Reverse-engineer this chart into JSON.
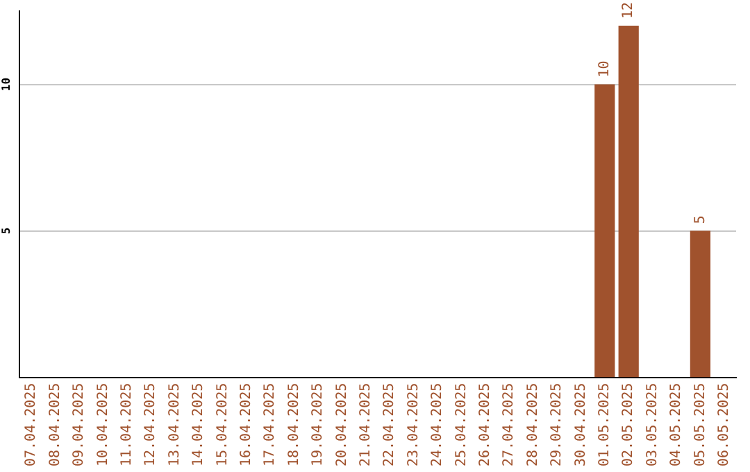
{
  "chart_data": {
    "type": "bar",
    "categories": [
      "07.04.2025",
      "08.04.2025",
      "09.04.2025",
      "10.04.2025",
      "11.04.2025",
      "12.04.2025",
      "13.04.2025",
      "14.04.2025",
      "15.04.2025",
      "16.04.2025",
      "17.04.2025",
      "18.04.2025",
      "19.04.2025",
      "20.04.2025",
      "21.04.2025",
      "22.04.2025",
      "23.04.2025",
      "24.04.2025",
      "25.04.2025",
      "26.04.2025",
      "27.04.2025",
      "28.04.2025",
      "29.04.2025",
      "30.04.2025",
      "01.05.2025",
      "02.05.2025",
      "03.05.2025",
      "04.05.2025",
      "05.05.2025",
      "06.05.2025"
    ],
    "values": [
      null,
      null,
      null,
      null,
      null,
      null,
      null,
      null,
      null,
      null,
      null,
      null,
      null,
      null,
      null,
      null,
      null,
      null,
      null,
      null,
      null,
      null,
      null,
      null,
      10,
      12,
      null,
      null,
      5,
      null
    ],
    "color": "#a0522d",
    "ylim": [
      0,
      12.5
    ],
    "yticks": [
      5,
      10
    ],
    "grid": "y",
    "data_labels": true,
    "legend": false
  }
}
